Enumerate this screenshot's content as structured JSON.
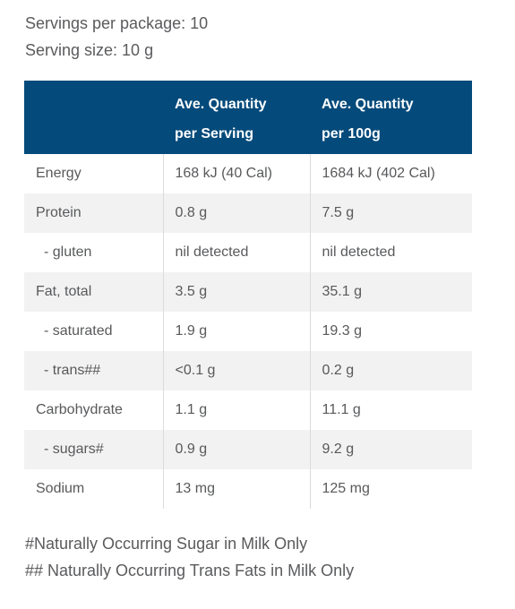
{
  "servings_per_package": "Servings per package: 10",
  "serving_size": "Serving size: 10 g",
  "table": {
    "header": {
      "col1": "",
      "col2_line1": "Ave. Quantity",
      "col2_line2": "per Serving",
      "col3_line1": "Ave. Quantity",
      "col3_line2": "per 100g"
    },
    "rows": [
      {
        "nutrient": "Energy",
        "per_serving": "168 kJ (40 Cal)",
        "per_100g": "1684 kJ (402 Cal)"
      },
      {
        "nutrient": "Protein",
        "per_serving": "0.8 g",
        "per_100g": "7.5 g"
      },
      {
        "nutrient": "- gluten",
        "per_serving": "nil detected",
        "per_100g": "nil detected"
      },
      {
        "nutrient": "Fat, total",
        "per_serving": "3.5 g",
        "per_100g": "35.1 g"
      },
      {
        "nutrient": "- saturated",
        "per_serving": "1.9 g",
        "per_100g": "19.3 g"
      },
      {
        "nutrient": "- trans##",
        "per_serving": "<0.1 g",
        "per_100g": "0.2 g"
      },
      {
        "nutrient": "Carbohydrate",
        "per_serving": "1.1 g",
        "per_100g": "11.1 g"
      },
      {
        "nutrient": "- sugars#",
        "per_serving": "0.9 g",
        "per_100g": "9.2 g"
      },
      {
        "nutrient": "Sodium",
        "per_serving": "13 mg",
        "per_100g": "125 mg"
      }
    ]
  },
  "footnotes": [
    "#Naturally Occurring Sugar in Milk Only",
    "## Naturally Occurring Trans Fats in Milk Only"
  ],
  "colors": {
    "header_bg": "#044a7b",
    "header_text": "#ffffff",
    "row_shade": "#f2f2f2",
    "body_text": "#58595b"
  }
}
